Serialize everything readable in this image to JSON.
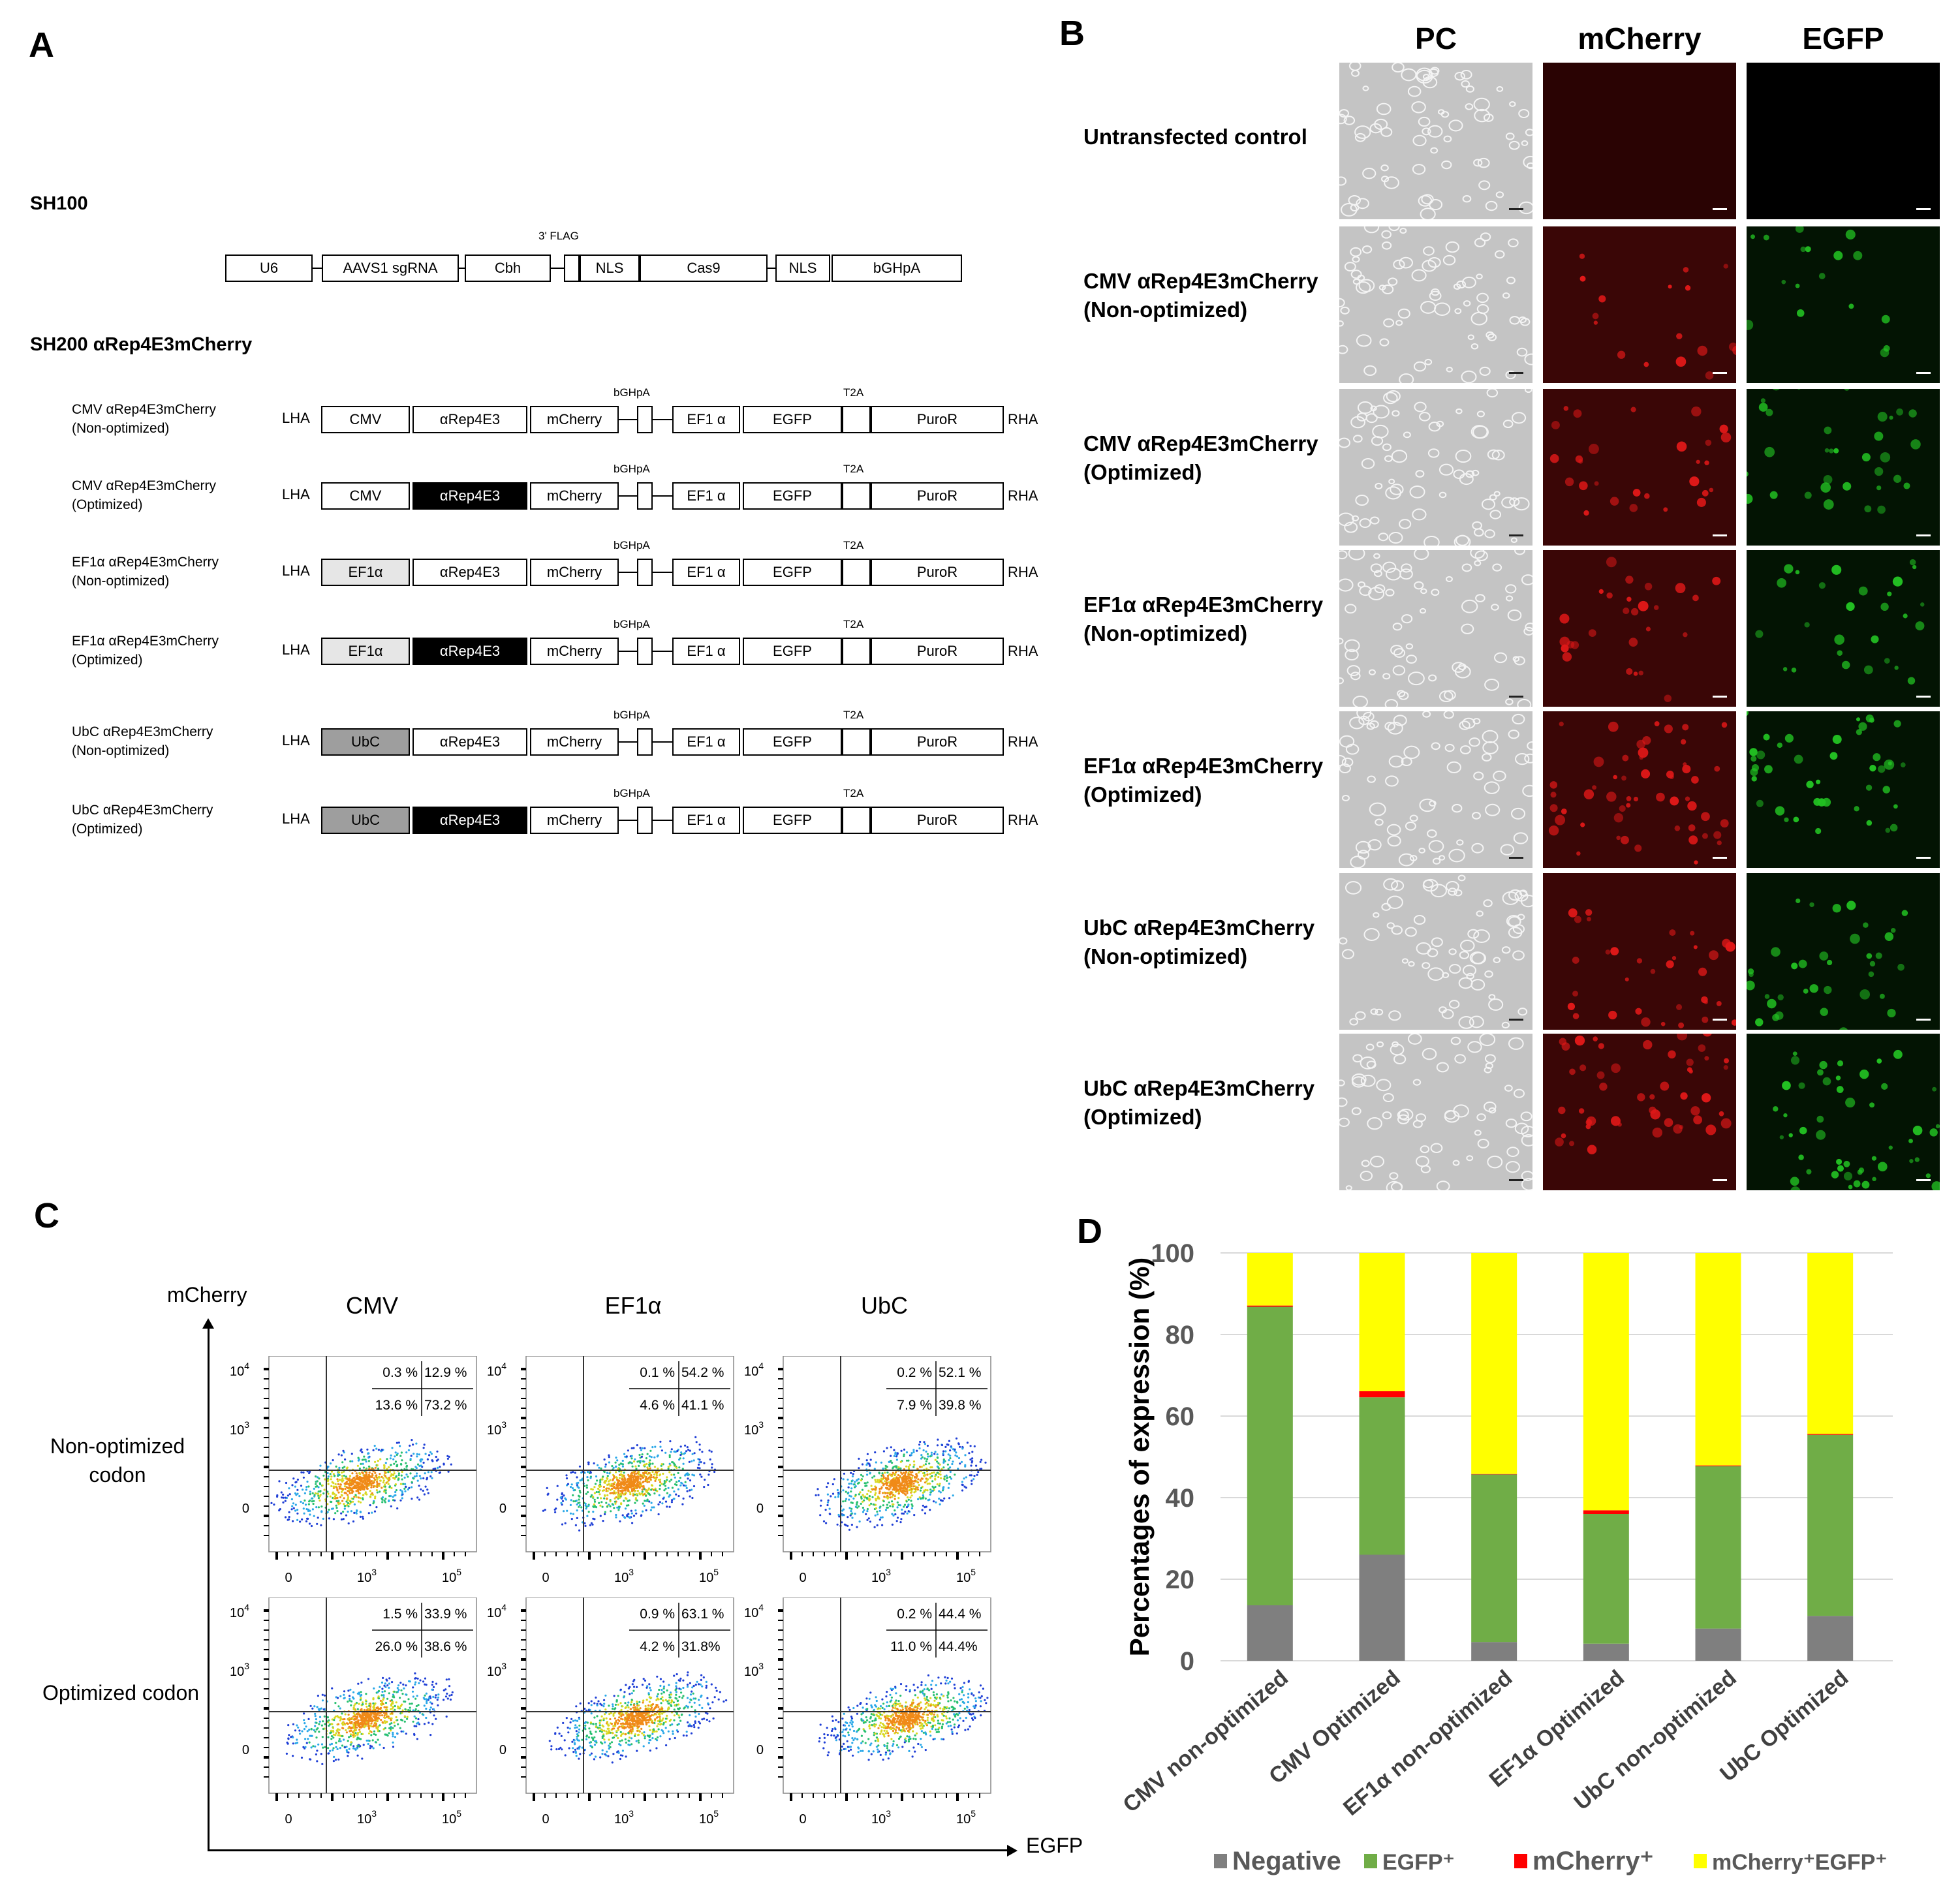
{
  "panels": {
    "a": "A",
    "b": "B",
    "c": "C",
    "d": "D"
  },
  "panel_a": {
    "sh100": {
      "title": "SH100",
      "flag_label": "3' FLAG",
      "boxes": [
        "U6",
        "AAVS1 sgRNA",
        "Cbh",
        "NLS",
        "Cas9",
        "NLS",
        "bGHpA"
      ]
    },
    "sh200": {
      "title": "SH200 αRep4E3mCherry",
      "lha": "LHA",
      "rha": "RHA",
      "bghpa_label": "bGHpA",
      "t2a_label": "T2A",
      "constructs": [
        {
          "line1": "CMV αRep4E3mCherry",
          "line2": "(Non-optimized)",
          "promoter": "CMV",
          "promoter_style": "white",
          "rep_style": "white",
          "rep": "αRep4E3",
          "mcherry": "mCherry",
          "ef1": "EF1 α",
          "egfp": "EGFP",
          "puro": "PuroR"
        },
        {
          "line1": "CMV αRep4E3mCherry",
          "line2": "(Optimized)",
          "promoter": "CMV",
          "promoter_style": "white",
          "rep_style": "black",
          "rep": "αRep4E3",
          "mcherry": "mCherry",
          "ef1": "EF1 α",
          "egfp": "EGFP",
          "puro": "PuroR"
        },
        {
          "line1": "EF1α αRep4E3mCherry",
          "line2": "(Non-optimized)",
          "promoter": "EF1α",
          "promoter_style": "lightgray",
          "rep_style": "white",
          "rep": "αRep4E3",
          "mcherry": "mCherry",
          "ef1": "EF1 α",
          "egfp": "EGFP",
          "puro": "PuroR"
        },
        {
          "line1": "EF1α αRep4E3mCherry",
          "line2": "(Optimized)",
          "promoter": "EF1α",
          "promoter_style": "lightgray",
          "rep_style": "black",
          "rep": "αRep4E3",
          "mcherry": "mCherry",
          "ef1": "EF1 α",
          "egfp": "EGFP",
          "puro": "PuroR"
        },
        {
          "line1": "UbC αRep4E3mCherry",
          "line2": "(Non-optimized)",
          "promoter": "UbC",
          "promoter_style": "gray",
          "rep_style": "white",
          "rep": "αRep4E3",
          "mcherry": "mCherry",
          "ef1": "EF1 α",
          "egfp": "EGFP",
          "puro": "PuroR"
        },
        {
          "line1": "UbC αRep4E3mCherry",
          "line2": "(Optimized)",
          "promoter": "UbC",
          "promoter_style": "gray",
          "rep_style": "black",
          "rep": "αRep4E3",
          "mcherry": "mCherry",
          "ef1": "EF1 α",
          "egfp": "EGFP",
          "puro": "PuroR"
        }
      ]
    }
  },
  "panel_b": {
    "columns": [
      "PC",
      "mCherry",
      "EGFP"
    ],
    "rows": [
      {
        "line1": "Untransfected control",
        "line2": ""
      },
      {
        "line1": "CMV αRep4E3mCherry",
        "line2": "(Non-optimized)"
      },
      {
        "line1": "CMV αRep4E3mCherry",
        "line2": "(Optimized)"
      },
      {
        "line1": "EF1α αRep4E3mCherry",
        "line2": "(Non-optimized)"
      },
      {
        "line1": "EF1α αRep4E3mCherry",
        "line2": "(Optimized)"
      },
      {
        "line1": "UbC αRep4E3mCherry",
        "line2": "(Non-optimized)"
      },
      {
        "line1": "UbC αRep4E3mCherry",
        "line2": "(Optimized)"
      }
    ],
    "colors": {
      "pc": "#c4c4c4",
      "mcherry": "#3a0606",
      "egfp": "#031403",
      "red_cell": "#e01818",
      "green_cell": "#22c022"
    }
  },
  "panel_c": {
    "y_axis_label": "mCherry",
    "x_axis_label": "EGFP",
    "columns": [
      "CMV",
      "EF1α",
      "UbC"
    ],
    "rows": [
      "Non-optimized\ncodon",
      "Optimized codon"
    ],
    "row_line1": [
      "Non-optimized",
      "Optimized codon"
    ],
    "row_line2": [
      "codon",
      ""
    ],
    "y_ticks": [
      "10",
      "10",
      "0"
    ],
    "y_tick_exps": [
      "4",
      "3",
      ""
    ],
    "x_ticks": [
      "0",
      "10",
      "10"
    ],
    "x_tick_exps": [
      "",
      "3",
      "5"
    ],
    "quadrants": [
      [
        {
          "ul": "0.3 %",
          "ur": "12.9 %",
          "ll": "13.6 %",
          "lr": "73.2 %"
        },
        {
          "ul": "0.1 %",
          "ur": "54.2 %",
          "ll": "4.6 %",
          "lr": "41.1 %"
        },
        {
          "ul": "0.2 %",
          "ur": "52.1 %",
          "ll": "7.9 %",
          "lr": "39.8 %"
        }
      ],
      [
        {
          "ul": "1.5 %",
          "ur": "33.9 %",
          "ll": "26.0 %",
          "lr": "38.6 %"
        },
        {
          "ul": "0.9 %",
          "ur": "63.1 %",
          "ll": "4.2 %",
          "lr": "31.8%"
        },
        {
          "ul": "0.2 %",
          "ur": "44.4 %",
          "ll": "11.0 %",
          "lr": "44.4%"
        }
      ]
    ]
  },
  "chart_data": {
    "type": "bar",
    "stacked": true,
    "categories": [
      "CMV non-optimized",
      "CMV Optimized",
      "EF1α non-optimized",
      "EF1α Optimized",
      "UbC non-optimized",
      "UbC Optimized"
    ],
    "series": [
      {
        "name": "Negative",
        "color": "#7f7f7f",
        "values": [
          13.6,
          26.0,
          4.6,
          4.2,
          7.9,
          11.0
        ]
      },
      {
        "name": "EGFP⁺",
        "color": "#70ad47",
        "values": [
          73.2,
          38.6,
          41.1,
          31.8,
          39.8,
          44.4
        ]
      },
      {
        "name": "mCherry⁺",
        "color": "#ff0000",
        "values": [
          0.3,
          1.5,
          0.1,
          0.9,
          0.2,
          0.2
        ]
      },
      {
        "name": "mCherry⁺EGFP⁺",
        "color": "#ffff00",
        "values": [
          12.9,
          33.9,
          54.2,
          63.1,
          52.1,
          44.4
        ]
      }
    ],
    "ylabel": "Percentages of expression (%)",
    "xlabel": "",
    "ylim": [
      0,
      100
    ],
    "yticks": [
      0,
      20,
      40,
      60,
      80,
      100
    ],
    "grid": true,
    "legend_position": "bottom"
  }
}
